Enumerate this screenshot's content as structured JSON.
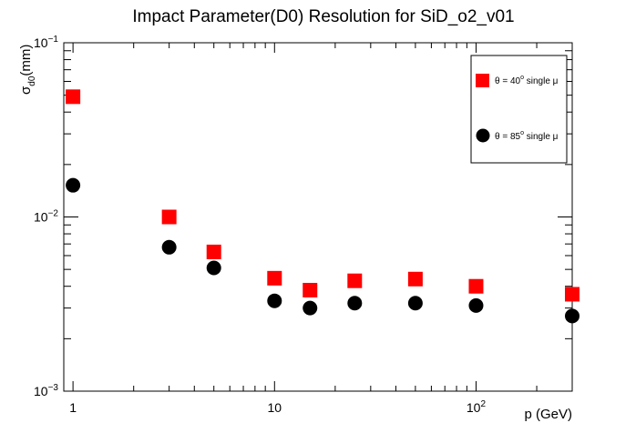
{
  "chart_data": {
    "type": "scatter",
    "title": "Impact Parameter(D0) Resolution for SiD_o2_v01",
    "xlabel": "p (GeV)",
    "ylabel": {
      "base": "σ",
      "sub": "d0",
      "tail": "(mm)"
    },
    "x_scale": "log",
    "y_scale": "log",
    "xlim": [
      0.9,
      300
    ],
    "ylim": [
      0.001,
      0.1
    ],
    "x_ticks": [
      {
        "value": 1,
        "label": "1"
      },
      {
        "value": 10,
        "label": "10"
      },
      {
        "value": 100,
        "label_base": "10",
        "label_exp": "2"
      }
    ],
    "y_ticks": [
      {
        "value": 0.001,
        "label_base": "10",
        "label_exp": "−3"
      },
      {
        "value": 0.01,
        "label_base": "10",
        "label_exp": "−2"
      },
      {
        "value": 0.1,
        "label_base": "10",
        "label_exp": "−1"
      }
    ],
    "grid": false,
    "legend_position": "top-right",
    "series": [
      {
        "legend_prefix": "θ = 40",
        "legend_deg": "o",
        "legend_suffix": " single μ",
        "color": "#ff0000",
        "marker": "square",
        "x": [
          1,
          3,
          5,
          10,
          15,
          25,
          50,
          100,
          300
        ],
        "y": [
          0.049,
          0.01,
          0.0063,
          0.00445,
          0.0038,
          0.0043,
          0.0044,
          0.004,
          0.0036
        ]
      },
      {
        "legend_prefix": "θ = 85",
        "legend_deg": "o",
        "legend_suffix": " single μ",
        "color": "#000000",
        "marker": "circle",
        "x": [
          1,
          3,
          5,
          10,
          15,
          25,
          50,
          100,
          300
        ],
        "y": [
          0.0152,
          0.0067,
          0.0051,
          0.0033,
          0.003,
          0.0032,
          0.0032,
          0.0031,
          0.0027
        ]
      }
    ]
  }
}
